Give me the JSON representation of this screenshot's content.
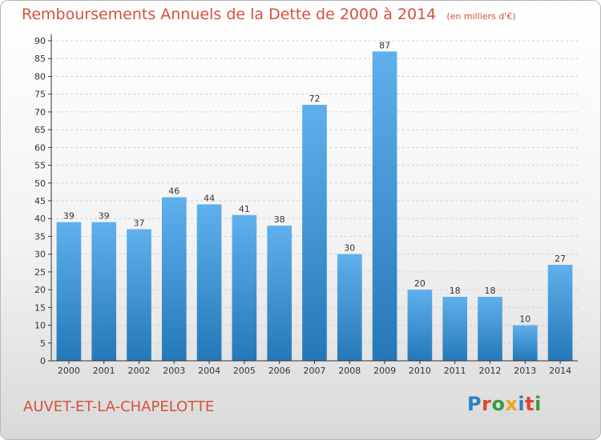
{
  "title": "Remboursements Annuels de la Dette de 2000 à 2014",
  "unit": "(en milliers d'€)",
  "commune": "AUVET-ET-LA-CHAPELOTTE",
  "brand": {
    "letters": [
      "P",
      "r",
      "o",
      "x",
      "i",
      "t",
      "i"
    ],
    "colors": [
      "#2f7fc1",
      "#e2452e",
      "#3b9b3b",
      "#f1a31c",
      "#2f7fc1",
      "#e2452e",
      "#3b9b3b"
    ]
  },
  "colors": {
    "bar_top": "#5fb0ec",
    "bar_bottom": "#2578b8",
    "title": "#d6503e",
    "grid": "#cfcfcf",
    "axis": "#333333"
  },
  "chart_data": {
    "type": "bar",
    "title": "Remboursements Annuels de la Dette de 2000 à 2014",
    "ylabel": "en milliers d'€",
    "xlabel": "",
    "categories": [
      "2000",
      "2001",
      "2002",
      "2003",
      "2004",
      "2005",
      "2006",
      "2007",
      "2008",
      "2009",
      "2010",
      "2011",
      "2012",
      "2013",
      "2014"
    ],
    "values": [
      39,
      39,
      37,
      46,
      44,
      41,
      38,
      72,
      30,
      87,
      20,
      18,
      18,
      10,
      27
    ],
    "ylim": [
      0,
      90
    ],
    "yticks": [
      0,
      5,
      10,
      15,
      20,
      25,
      30,
      35,
      40,
      45,
      50,
      55,
      60,
      65,
      70,
      75,
      80,
      85,
      90
    ],
    "grid": true
  }
}
